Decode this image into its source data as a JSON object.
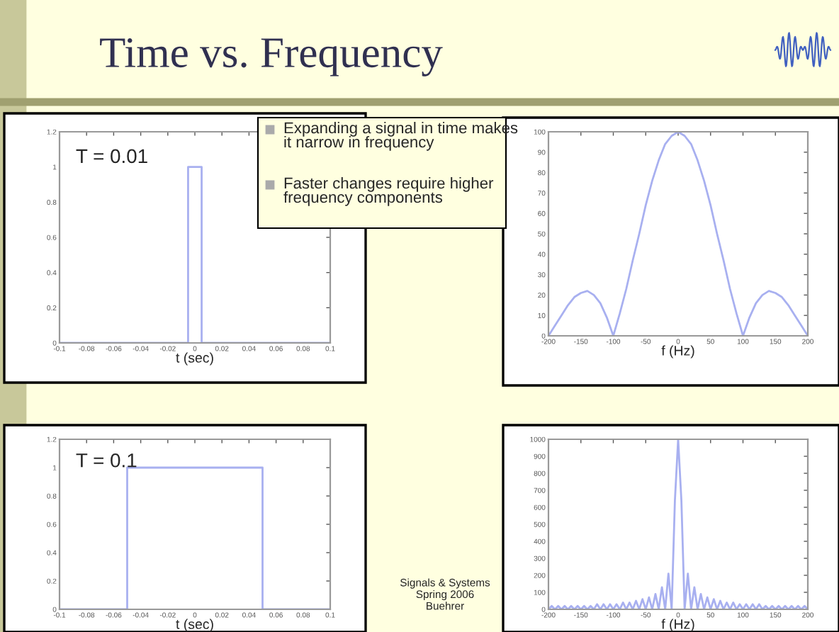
{
  "chart_data": [
    {
      "type": "other",
      "title": "Time vs. Frequency",
      "annotations": [
        "Expanding a signal in time makes it narrow in frequency",
        "Faster changes require higher frequency components",
        "Signals & Systems\nSpring 2006\nBuehrer"
      ]
    },
    {
      "type": "line",
      "xlabel": "t (sec)",
      "annotations": [
        "T = 0.01"
      ],
      "x": [
        -0.1,
        -0.005,
        -0.005,
        0.005,
        0.005,
        0.1
      ],
      "series": [
        {
          "color": "#a8b0f0",
          "values": [
            0,
            0,
            1,
            1,
            0,
            0
          ]
        }
      ],
      "xlim": [
        -0.1,
        0.1
      ],
      "xticks": [
        -0.1,
        -0.08,
        -0.06,
        -0.04,
        -0.02,
        0,
        0.02,
        0.04,
        0.06,
        0.08,
        0.1
      ],
      "ylim": [
        0,
        1.2
      ],
      "yticks": [
        0,
        0.2,
        0.4,
        0.6,
        0.8,
        1,
        1.2
      ]
    },
    {
      "type": "line",
      "xlabel": "f (Hz)",
      "x": [
        -200,
        -190,
        -180,
        -170,
        -160,
        -150,
        -140,
        -130,
        -120,
        -110,
        -100,
        -90,
        -80,
        -70,
        -60,
        -50,
        -40,
        -30,
        -20,
        -10,
        0,
        10,
        20,
        30,
        40,
        50,
        60,
        70,
        80,
        90,
        100,
        110,
        120,
        130,
        140,
        150,
        160,
        170,
        180,
        190,
        200
      ],
      "series": [
        {
          "color": "#a8b0f0",
          "values": [
            0,
            5,
            10,
            15,
            19,
            21,
            22,
            20,
            16,
            9,
            0,
            11,
            23,
            37,
            50,
            64,
            76,
            86,
            94,
            98,
            100,
            98,
            94,
            86,
            76,
            64,
            50,
            37,
            23,
            11,
            0,
            9,
            16,
            20,
            22,
            21,
            19,
            15,
            10,
            5,
            0
          ]
        }
      ],
      "xlim": [
        -200,
        200
      ],
      "xticks": [
        -200,
        -150,
        -100,
        -50,
        0,
        50,
        100,
        150,
        200
      ],
      "ylim": [
        0,
        100
      ],
      "yticks": [
        0,
        10,
        20,
        30,
        40,
        50,
        60,
        70,
        80,
        90,
        100
      ]
    },
    {
      "type": "line",
      "xlabel": "t (sec)",
      "annotations": [
        "T = 0.1"
      ],
      "x": [
        -0.1,
        -0.05,
        -0.05,
        0.05,
        0.05,
        0.1
      ],
      "series": [
        {
          "color": "#a8b0f0",
          "values": [
            0,
            0,
            1,
            1,
            0,
            0
          ]
        }
      ],
      "xlim": [
        -0.1,
        0.1
      ],
      "xticks": [
        -0.1,
        -0.08,
        -0.06,
        -0.04,
        -0.02,
        0,
        0.02,
        0.04,
        0.06,
        0.08,
        0.1
      ],
      "ylim": [
        0,
        1.2
      ],
      "yticks": [
        0,
        0.2,
        0.4,
        0.6,
        0.8,
        1,
        1.2
      ]
    },
    {
      "type": "line",
      "xlabel": "f (Hz)",
      "x": [
        -200,
        -195,
        -190,
        -185,
        -180,
        -175,
        -170,
        -165,
        -160,
        -155,
        -150,
        -145,
        -140,
        -135,
        -130,
        -125,
        -120,
        -115,
        -110,
        -105,
        -100,
        -95,
        -90,
        -85,
        -80,
        -75,
        -70,
        -65,
        -60,
        -55,
        -50,
        -45,
        -40,
        -35,
        -30,
        -25,
        -20,
        -15,
        -10,
        -5,
        0,
        5,
        10,
        15,
        20,
        25,
        30,
        35,
        40,
        45,
        50,
        55,
        60,
        65,
        70,
        75,
        80,
        85,
        90,
        95,
        100,
        105,
        110,
        115,
        120,
        125,
        130,
        135,
        140,
        145,
        150,
        155,
        160,
        165,
        170,
        175,
        180,
        185,
        190,
        195,
        200
      ],
      "series": [
        {
          "color": "#a8b0f0",
          "values": [
            0,
            20,
            0,
            20,
            0,
            20,
            0,
            20,
            0,
            20,
            0,
            20,
            0,
            20,
            0,
            30,
            0,
            30,
            0,
            30,
            0,
            30,
            0,
            40,
            0,
            40,
            0,
            50,
            0,
            60,
            0,
            70,
            0,
            90,
            0,
            130,
            0,
            210,
            0,
            640,
            1000,
            640,
            0,
            210,
            0,
            130,
            0,
            90,
            0,
            70,
            0,
            60,
            0,
            50,
            0,
            40,
            0,
            40,
            0,
            30,
            0,
            30,
            0,
            30,
            0,
            30,
            0,
            20,
            0,
            20,
            0,
            20,
            0,
            20,
            0,
            20,
            0,
            20,
            0,
            20,
            0
          ]
        }
      ],
      "xlim": [
        -200,
        200
      ],
      "xticks": [
        -200,
        -150,
        -100,
        -50,
        0,
        50,
        100,
        150,
        200
      ],
      "ylim": [
        0,
        1000
      ],
      "yticks": [
        0,
        100,
        200,
        300,
        400,
        500,
        600,
        700,
        800,
        900,
        1000
      ]
    }
  ]
}
